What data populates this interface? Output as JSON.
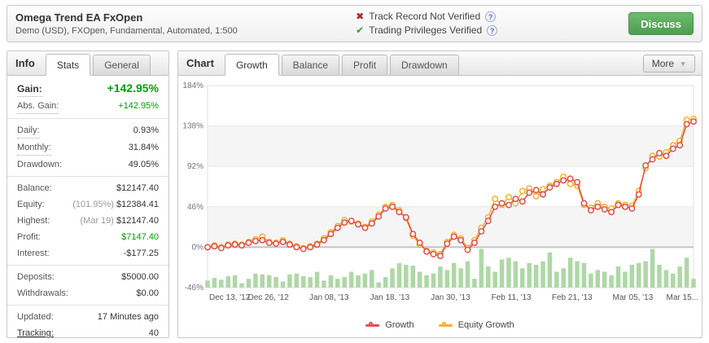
{
  "header": {
    "title": "Omega Trend EA FxOpen",
    "subtitle": "Demo (USD), FXOpen, Fundamental, Automated, 1:500",
    "verifications": [
      {
        "status": "fail",
        "text": "Track Record Not Verified"
      },
      {
        "status": "ok",
        "text": "Trading Privileges Verified"
      }
    ],
    "discuss_label": "Discuss"
  },
  "icons": {
    "cross_glyph": "✖",
    "check_glyph": "✔",
    "help_glyph": "?",
    "more_arrow_glyph": "▼"
  },
  "info_panel": {
    "title": "Info",
    "tabs": [
      {
        "label": "Stats",
        "active": true
      },
      {
        "label": "General",
        "active": false
      }
    ],
    "groups": [
      [
        {
          "label": "Gain:",
          "value": "+142.95%",
          "dotted": true,
          "big": true,
          "vclass": "gbig"
        },
        {
          "label": "Abs. Gain:",
          "value": "+142.95%",
          "dotted": true,
          "vclass": "green"
        }
      ],
      [
        {
          "label": "Daily:",
          "value": "0.93%",
          "dotted": true
        },
        {
          "label": "Monthly:",
          "value": "31.84%",
          "dotted": true
        },
        {
          "label": "Drawdown:",
          "value": "49.05%"
        }
      ],
      [
        {
          "label": "Balance:",
          "value": "$12147.40"
        },
        {
          "label": "Equity:",
          "prefix": "(101.95%)",
          "value": "$12384.41"
        },
        {
          "label": "Highest:",
          "prefix": "(Mar 19)",
          "value": "$12147.40"
        },
        {
          "label": "Profit:",
          "value": "$7147.40",
          "vclass": "green"
        },
        {
          "label": "Interest:",
          "value": "-$177.25"
        }
      ],
      [
        {
          "label": "Deposits:",
          "value": "$5000.00"
        },
        {
          "label": "Withdrawals:",
          "value": "$0.00"
        }
      ],
      [
        {
          "label": "Updated:",
          "value": "17 Minutes ago"
        },
        {
          "label": "Tracking:",
          "value": "40",
          "link": true
        }
      ]
    ]
  },
  "chart_panel": {
    "title": "Chart",
    "tabs": [
      {
        "label": "Growth",
        "active": true
      },
      {
        "label": "Balance",
        "active": false
      },
      {
        "label": "Profit",
        "active": false
      },
      {
        "label": "Drawdown",
        "active": false
      }
    ],
    "more_label": "More"
  },
  "chart_data": {
    "type": "line",
    "title": "Growth",
    "ylim": [
      -46,
      184
    ],
    "ytick_values": [
      184,
      138,
      92,
      46,
      0,
      -46
    ],
    "ytick_labels": [
      "184%",
      "138%",
      "92%",
      "46%",
      "0%",
      "-46%"
    ],
    "xtick_labels": [
      "Dec 13, '12",
      "Dec 26, '12",
      "Jan 08, '13",
      "Jan 18, '13",
      "Jan 30, '13",
      "Feb 11, '13",
      "Feb 21, '13",
      "Mar 05, '13",
      "Mar 15..."
    ],
    "xtick_indices": [
      0,
      9,
      18,
      26,
      34,
      42,
      50,
      58,
      66
    ],
    "grid": "alternating-bands",
    "legend_position": "bottom-center",
    "legend": [
      {
        "name": "Growth",
        "color": "#e2504c"
      },
      {
        "name": "Equity Growth",
        "color": "#f9b029"
      }
    ],
    "series": [
      {
        "name": "Growth",
        "color": "#e2504c",
        "values": [
          0,
          1,
          -1,
          2,
          3,
          2,
          5,
          7,
          8,
          5,
          4,
          6,
          3,
          0,
          -2,
          0,
          3,
          8,
          15,
          22,
          28,
          30,
          26,
          22,
          27,
          35,
          44,
          46,
          40,
          34,
          15,
          5,
          -5,
          -8,
          -10,
          4,
          12,
          8,
          -3,
          5,
          18,
          30,
          46,
          50,
          48,
          55,
          52,
          62,
          65,
          60,
          68,
          72,
          76,
          78,
          74,
          50,
          42,
          46,
          43,
          40,
          48,
          46,
          44,
          60,
          93,
          100,
          107,
          104,
          112,
          116,
          140,
          143
        ]
      },
      {
        "name": "Equity Growth",
        "color": "#f9b029",
        "values": [
          0,
          2,
          0,
          3,
          4,
          3,
          6,
          9,
          12,
          6,
          5,
          8,
          4,
          1,
          -1,
          1,
          4,
          10,
          17,
          24,
          31,
          29,
          27,
          23,
          29,
          37,
          46,
          48,
          42,
          33,
          13,
          3,
          -4,
          -6,
          -8,
          6,
          14,
          10,
          -1,
          8,
          22,
          34,
          55,
          48,
          57,
          50,
          64,
          67,
          58,
          66,
          70,
          74,
          80,
          72,
          70,
          48,
          45,
          50,
          46,
          44,
          50,
          48,
          47,
          64,
          90,
          104,
          103,
          108,
          116,
          121,
          145,
          146
        ]
      }
    ],
    "bars": {
      "name": "Daily Activity",
      "color": "#aed8a6",
      "values": [
        8,
        11,
        9,
        13,
        14,
        5,
        10,
        16,
        15,
        14,
        12,
        7,
        15,
        16,
        13,
        12,
        18,
        8,
        14,
        10,
        12,
        18,
        14,
        16,
        20,
        6,
        12,
        22,
        28,
        26,
        25,
        18,
        14,
        16,
        24,
        20,
        28,
        22,
        30,
        10,
        44,
        24,
        18,
        32,
        34,
        30,
        22,
        28,
        26,
        30,
        40,
        18,
        22,
        34,
        30,
        28,
        16,
        20,
        18,
        14,
        24,
        18,
        26,
        28,
        30,
        44,
        26,
        20,
        16,
        24,
        34,
        10
      ]
    }
  },
  "colors": {
    "stat_green": "#00a000",
    "growth_red": "#e2504c",
    "equity_yellow": "#f9b029",
    "bar_green": "#aed8a6",
    "discuss_green": "#4e9e51",
    "band_gray": "#f5f5f5"
  }
}
